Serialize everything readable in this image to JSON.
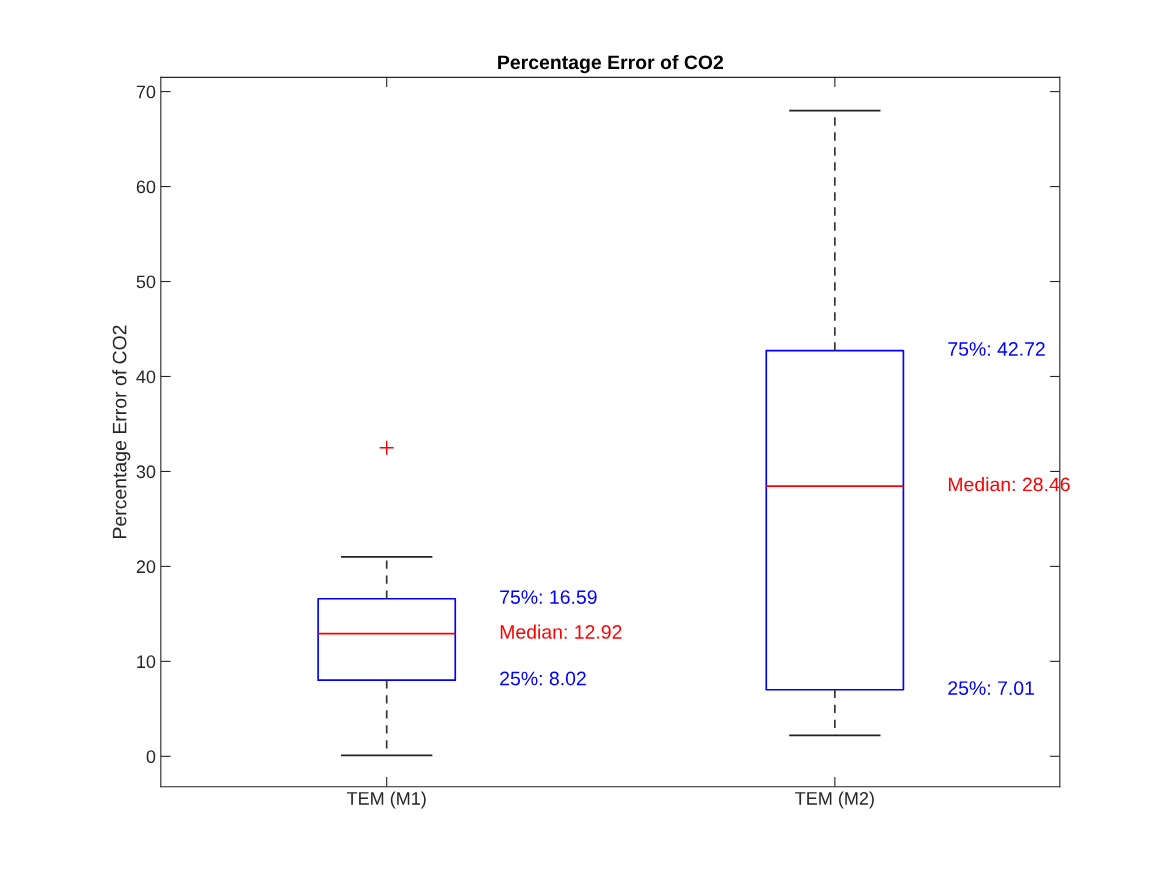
{
  "chart_data": {
    "type": "box",
    "title": "Percentage Error of CO2",
    "ylabel": "Percentage Error of CO2",
    "categories": [
      "TEM (M1)",
      "TEM (M2)"
    ],
    "series": [
      {
        "color": "#0000ff",
        "boxes": [
          {
            "low": 0.1,
            "q1": 8.02,
            "median": 12.92,
            "q3": 16.59,
            "high": 21.0,
            "outliers": [
              32.5
            ]
          },
          {
            "low": 2.2,
            "q1": 7.01,
            "median": 28.46,
            "q3": 42.72,
            "high": 68.0
          }
        ]
      }
    ],
    "ylim": [
      -3.2,
      71.5
    ],
    "yticks": [
      0,
      10,
      20,
      30,
      40,
      50,
      60,
      70
    ],
    "grid": false,
    "annotations": [
      "75%: 16.59",
      "Median: 12.92",
      "25%: 8.02",
      "75%: 42.72",
      "Median: 28.46",
      "25%: 7.01"
    ]
  }
}
